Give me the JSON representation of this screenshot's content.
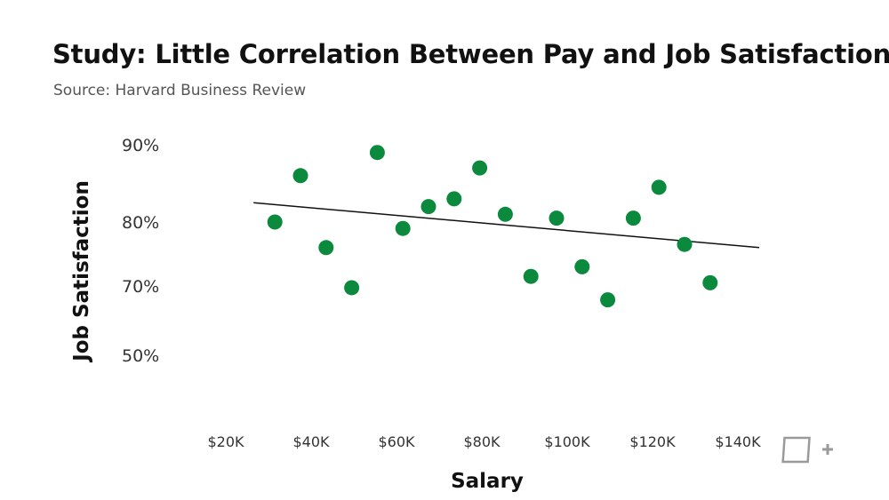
{
  "title": "Study: Little Correlation Between Pay and Job Satisfaction",
  "subtitle": "Source: Harvard Business Review",
  "logo_icon": "plus-box-icon",
  "colors": {
    "points": "#0b8a3d",
    "trendline": "#111111",
    "title": "#111111",
    "subtitle": "#555555"
  },
  "chart_data": {
    "type": "scatter",
    "title": "Study: Little Correlation Between Pay and Job Satisfaction",
    "subtitle": "Source: Harvard Business Review",
    "xlabel": "Salary",
    "ylabel": "Job Satisfaction",
    "x_ticks": [
      {
        "value": 20000,
        "label": "$20K"
      },
      {
        "value": 40000,
        "label": "$40K"
      },
      {
        "value": 60000,
        "label": "$60K"
      },
      {
        "value": 80000,
        "label": "$80K"
      },
      {
        "value": 100000,
        "label": "$100K"
      },
      {
        "value": 120000,
        "label": "$120K"
      },
      {
        "value": 140000,
        "label": "$140K"
      }
    ],
    "y_ticks": [
      {
        "value": 90,
        "label": "90%"
      },
      {
        "value": 80,
        "label": "80%"
      },
      {
        "value": 70,
        "label": "70%"
      },
      {
        "value": 50,
        "label": "50%"
      }
    ],
    "xlim": [
      20000,
      140000
    ],
    "grid": false,
    "legend": "none",
    "points": [
      {
        "x": 31500,
        "y": 80.0
      },
      {
        "x": 37500,
        "y": 86.0
      },
      {
        "x": 43500,
        "y": 76.0
      },
      {
        "x": 49500,
        "y": 69.5
      },
      {
        "x": 55500,
        "y": 89.0
      },
      {
        "x": 61500,
        "y": 79.0
      },
      {
        "x": 67500,
        "y": 82.0
      },
      {
        "x": 73500,
        "y": 83.0
      },
      {
        "x": 79500,
        "y": 87.0
      },
      {
        "x": 85500,
        "y": 81.0
      },
      {
        "x": 91500,
        "y": 71.5
      },
      {
        "x": 97500,
        "y": 80.5
      },
      {
        "x": 103500,
        "y": 73.0
      },
      {
        "x": 109500,
        "y": 66.0
      },
      {
        "x": 115500,
        "y": 80.5
      },
      {
        "x": 121500,
        "y": 84.5
      },
      {
        "x": 127500,
        "y": 76.5
      },
      {
        "x": 133500,
        "y": 70.5
      }
    ],
    "trendline": {
      "x": [
        26500,
        145000
      ],
      "y": [
        82.5,
        76.0
      ]
    }
  }
}
